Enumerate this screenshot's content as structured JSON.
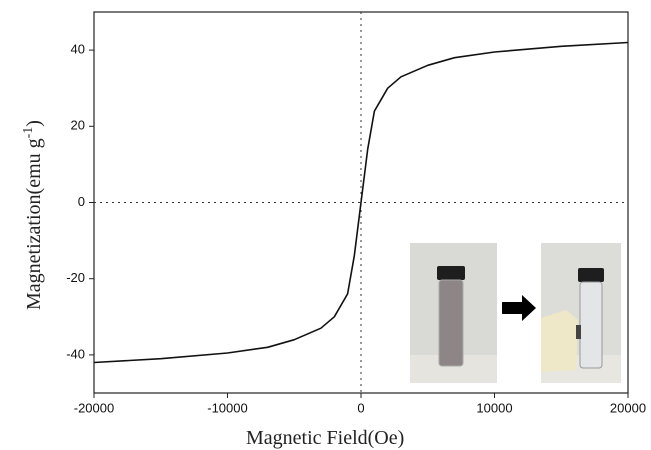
{
  "chart_data": {
    "type": "line",
    "xlabel": "Magnetic Field(Oe)",
    "ylabel": {
      "text": "Magnetization(emu g",
      "superscript": "-1",
      "suffix": ")"
    },
    "x": [
      -20000,
      -15000,
      -10000,
      -7000,
      -5000,
      -3000,
      -2000,
      -1000,
      -500,
      0,
      500,
      1000,
      2000,
      3000,
      5000,
      7000,
      10000,
      15000,
      20000
    ],
    "series": [
      {
        "color": "#111111",
        "values": [
          -42,
          -41,
          -39.5,
          -38,
          -36,
          -33,
          -30,
          -24,
          -14,
          0,
          14,
          24,
          30,
          33,
          36,
          38,
          39.5,
          41,
          42
        ]
      }
    ],
    "xlim": [
      -20000,
      20000
    ],
    "xticks": [
      -20000,
      -10000,
      0,
      10000,
      20000
    ],
    "ylim": [
      -50,
      50
    ],
    "yticks": [
      -40,
      -20,
      0,
      20,
      40
    ],
    "zero_lines": {
      "x": 0,
      "y": 0
    }
  }
}
